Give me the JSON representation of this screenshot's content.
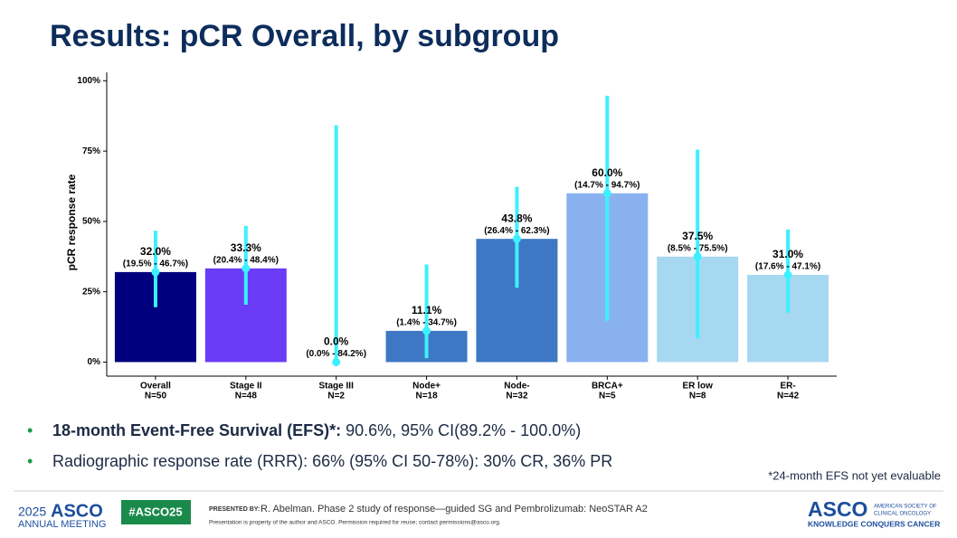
{
  "slide": {
    "title": "Results: pCR Overall, by subgroup",
    "bullets": [
      {
        "bold": "18-month Event-Free Survival (EFS)*:",
        "text": " 90.6%, 95% CI(89.2% - 100.0%)"
      },
      {
        "text": "Radiographic response rate (RRR): 66% (95% CI 50-78%): 30% CR, 36% PR"
      }
    ],
    "footnote": "*24-month EFS not yet evaluable",
    "footer": {
      "year": "2025",
      "brand": "ASCO",
      "meeting": "ANNUAL MEETING",
      "hashtag": "#ASCO25",
      "presented_by": "PRESENTED BY:",
      "presenter": "R. Abelman. Phase 2 study of response—guided SG and Pembrolizumab: NeoSTAR A2",
      "disclaimer": "Presentation is property of the author and ASCO. Permission required for reuse; contact permissions@asco.org.",
      "logo": "ASCO",
      "society_1": "AMERICAN SOCIETY OF",
      "society_2": "CLINICAL ONCOLOGY",
      "tagline": "KNOWLEDGE CONQUERS CANCER"
    }
  },
  "chart_data": {
    "type": "bar",
    "y_label": "pCR response rate",
    "categories": [
      "Overall",
      "Stage II",
      "Stage III",
      "Node+",
      "Node-",
      "BRCA+",
      "ER low",
      "ER-"
    ],
    "n_labels": [
      "N=50",
      "N=48",
      "N=2",
      "N=18",
      "N=32",
      "N=5",
      "N=8",
      "N=42"
    ],
    "values": [
      32.0,
      33.3,
      0.0,
      11.1,
      43.8,
      60.0,
      37.5,
      31.0
    ],
    "value_labels": [
      "32.0%",
      "33.3%",
      "0.0%",
      "11.1%",
      "43.8%",
      "60.0%",
      "37.5%",
      "31.0%"
    ],
    "ci_low": [
      19.5,
      20.4,
      0.0,
      1.4,
      26.4,
      14.7,
      8.5,
      17.6
    ],
    "ci_high": [
      46.7,
      48.4,
      84.2,
      34.7,
      62.3,
      94.7,
      75.5,
      47.1
    ],
    "ci_labels": [
      "(19.5% - 46.7%)",
      "(20.4% - 48.4%)",
      "(0.0% - 84.2%)",
      "(1.4% - 34.7%)",
      "(26.4% - 62.3%)",
      "(14.7% - 94.7%)",
      "(8.5% - 75.5%)",
      "(17.6% - 47.1%)"
    ],
    "colors": [
      "#00007f",
      "#6a3cf8",
      "#3e78c4",
      "#3e78c4",
      "#3e78c4",
      "#8ab1ef",
      "#a7d8f1",
      "#a7d8f1"
    ],
    "ci_color": "#3df0ff",
    "ylim": [
      -5,
      103
    ],
    "yticks": [
      {
        "value": 0,
        "label": "0%"
      },
      {
        "value": 25,
        "label": "25%"
      },
      {
        "value": 50,
        "label": "50%"
      },
      {
        "value": 75,
        "label": "75%"
      },
      {
        "value": 100,
        "label": "100%"
      }
    ]
  }
}
